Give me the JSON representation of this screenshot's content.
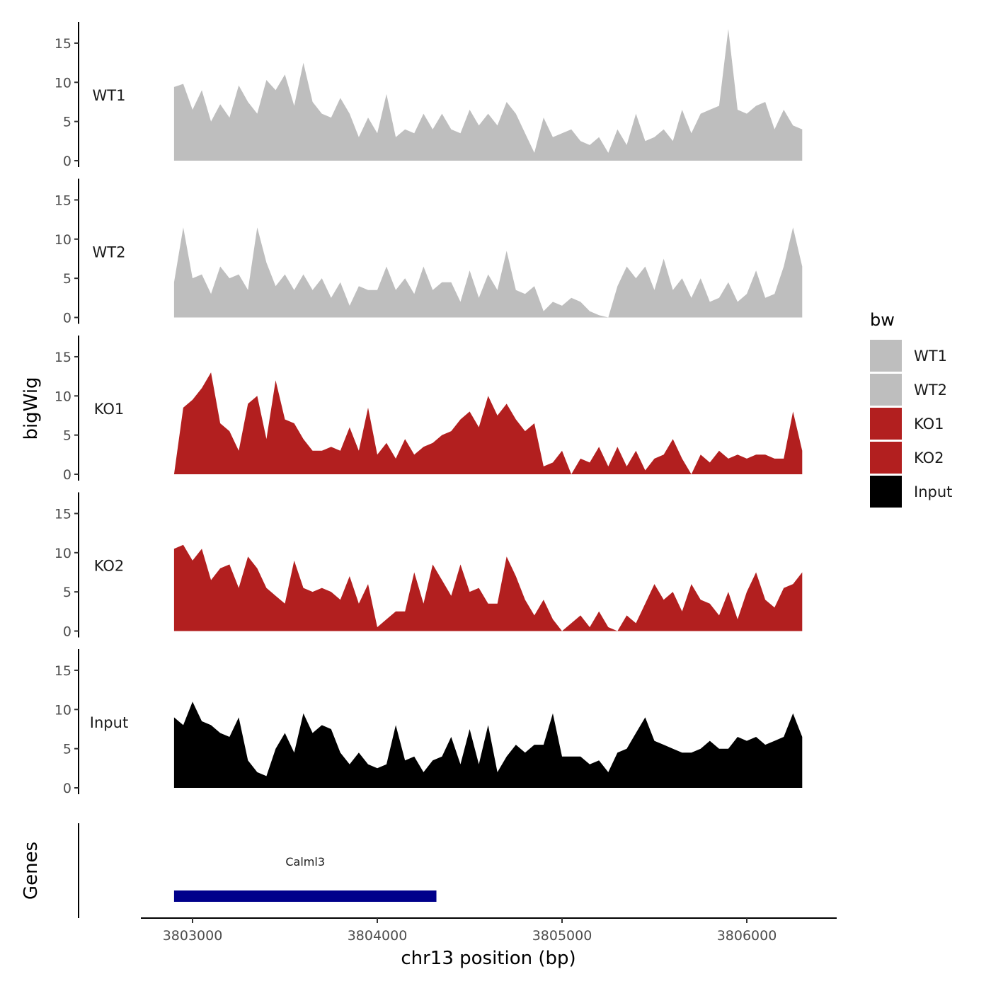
{
  "chart_data": {
    "type": "area",
    "title": "",
    "xlabel": "chr13 position (bp)",
    "ylabel": "bigWig",
    "genes_label": "Genes",
    "legend_title": "bw",
    "xlim": [
      3802700,
      3806500
    ],
    "ylim": [
      0,
      17
    ],
    "x_ticks": [
      3803000,
      3804000,
      3805000,
      3806000
    ],
    "x_tick_labels": [
      "3803000",
      "3804000",
      "3805000",
      "3806000"
    ],
    "y_ticks": [
      0,
      5,
      10,
      15
    ],
    "y_tick_labels": [
      "0",
      "5",
      "10",
      "15"
    ],
    "grid": false,
    "legend_position": "right",
    "positions": [
      3802900,
      3802950,
      3803000,
      3803050,
      3803100,
      3803150,
      3803200,
      3803250,
      3803300,
      3803350,
      3803400,
      3803450,
      3803500,
      3803550,
      3803600,
      3803650,
      3803700,
      3803750,
      3803800,
      3803850,
      3803900,
      3803950,
      3804000,
      3804050,
      3804100,
      3804150,
      3804200,
      3804250,
      3804300,
      3804350,
      3804400,
      3804450,
      3804500,
      3804550,
      3804600,
      3804650,
      3804700,
      3804750,
      3804800,
      3804850,
      3804900,
      3804950,
      3805000,
      3805050,
      3805100,
      3805150,
      3805200,
      3805250,
      3805300,
      3805350,
      3805400,
      3805450,
      3805500,
      3805550,
      3805600,
      3805650,
      3805700,
      3805750,
      3805800,
      3805850,
      3805900,
      3805950,
      3806000,
      3806050,
      3806100,
      3806150,
      3806200,
      3806250,
      3806300
    ],
    "series": [
      {
        "name": "WT1",
        "color": "#bebebe",
        "values": [
          9.4,
          9.8,
          6.5,
          9.0,
          5.0,
          7.2,
          5.5,
          9.6,
          7.5,
          6.0,
          10.3,
          9.0,
          11.0,
          7.0,
          12.5,
          7.5,
          6.0,
          5.5,
          8.0,
          6.0,
          3.0,
          5.5,
          3.5,
          8.5,
          3.0,
          4.0,
          3.5,
          6.0,
          4.0,
          6.0,
          4.0,
          3.5,
          6.5,
          4.5,
          6.0,
          4.5,
          7.5,
          6.0,
          3.5,
          1.0,
          5.5,
          3.0,
          3.5,
          4.0,
          2.5,
          2.0,
          3.0,
          1.0,
          4.0,
          2.0,
          6.0,
          2.5,
          3.0,
          4.0,
          2.5,
          6.5,
          3.5,
          6.0,
          6.5,
          7.0,
          16.8,
          6.5,
          6.0,
          7.0,
          7.5,
          4.0,
          6.5,
          4.5,
          4.0
        ]
      },
      {
        "name": "WT2",
        "color": "#bebebe",
        "values": [
          4.5,
          11.5,
          5.0,
          5.5,
          3.0,
          6.5,
          5.0,
          5.5,
          3.5,
          11.5,
          7.0,
          4.0,
          5.5,
          3.5,
          5.5,
          3.5,
          5.0,
          2.5,
          4.5,
          1.5,
          4.0,
          3.5,
          3.5,
          6.5,
          3.5,
          5.0,
          3.0,
          6.5,
          3.5,
          4.5,
          4.5,
          2.0,
          6.0,
          2.5,
          5.5,
          3.5,
          8.5,
          3.5,
          3.0,
          4.0,
          0.8,
          2.0,
          1.5,
          2.5,
          2.0,
          0.8,
          0.3,
          0.0,
          4.0,
          6.5,
          5.0,
          6.5,
          3.5,
          7.5,
          3.5,
          5.0,
          2.5,
          5.0,
          2.0,
          2.5,
          4.5,
          2.0,
          3.0,
          6.0,
          2.5,
          3.0,
          6.5,
          11.5,
          6.5
        ]
      },
      {
        "name": "KO1",
        "color": "#b21f1f",
        "values": [
          0.0,
          8.5,
          9.5,
          11.0,
          13.0,
          6.5,
          5.5,
          3.0,
          9.0,
          10.0,
          4.5,
          12.0,
          7.0,
          6.5,
          4.5,
          3.0,
          3.0,
          3.5,
          3.0,
          6.0,
          3.0,
          8.5,
          2.5,
          4.0,
          2.0,
          4.5,
          2.5,
          3.5,
          4.0,
          5.0,
          5.5,
          7.0,
          8.0,
          6.0,
          10.0,
          7.5,
          9.0,
          7.0,
          5.5,
          6.5,
          1.0,
          1.5,
          3.0,
          0.0,
          2.0,
          1.5,
          3.5,
          1.0,
          3.5,
          1.0,
          3.0,
          0.5,
          2.0,
          2.5,
          4.5,
          2.0,
          0.0,
          2.5,
          1.5,
          3.0,
          2.0,
          2.5,
          2.0,
          2.5,
          2.5,
          2.0,
          2.0,
          8.0,
          3.0
        ]
      },
      {
        "name": "KO2",
        "color": "#b21f1f",
        "values": [
          10.5,
          11.0,
          9.0,
          10.5,
          6.5,
          8.0,
          8.5,
          5.5,
          9.5,
          8.0,
          5.5,
          4.5,
          3.5,
          9.0,
          5.5,
          5.0,
          5.5,
          5.0,
          4.0,
          7.0,
          3.5,
          6.0,
          0.5,
          1.5,
          2.5,
          2.5,
          7.5,
          3.5,
          8.5,
          6.5,
          4.5,
          8.5,
          5.0,
          5.5,
          3.5,
          3.5,
          9.5,
          7.0,
          4.0,
          2.0,
          4.0,
          1.5,
          0.0,
          1.0,
          2.0,
          0.5,
          2.5,
          0.5,
          0.0,
          2.0,
          1.0,
          3.5,
          6.0,
          4.0,
          5.0,
          2.5,
          6.0,
          4.0,
          3.5,
          2.0,
          5.0,
          1.5,
          5.0,
          7.5,
          4.0,
          3.0,
          5.5,
          6.0,
          7.5
        ]
      },
      {
        "name": "Input",
        "color": "#000000",
        "values": [
          9.0,
          8.0,
          11.0,
          8.5,
          8.0,
          7.0,
          6.5,
          9.0,
          3.5,
          2.0,
          1.5,
          5.0,
          7.0,
          4.5,
          9.5,
          7.0,
          8.0,
          7.5,
          4.5,
          3.0,
          4.5,
          3.0,
          2.5,
          3.0,
          8.0,
          3.5,
          4.0,
          2.0,
          3.5,
          4.0,
          6.5,
          3.0,
          7.5,
          3.0,
          8.0,
          2.0,
          4.0,
          5.5,
          4.5,
          5.5,
          5.5,
          9.5,
          4.0,
          4.0,
          4.0,
          3.0,
          3.5,
          2.0,
          4.5,
          5.0,
          7.0,
          9.0,
          6.0,
          5.5,
          5.0,
          4.5,
          4.5,
          5.0,
          6.0,
          5.0,
          5.0,
          6.5,
          6.0,
          6.5,
          5.5,
          6.0,
          6.5,
          9.5,
          6.5
        ]
      }
    ],
    "genes": [
      {
        "name": "Calml3",
        "start": 3802900,
        "end": 3804320,
        "color": "#00008b"
      }
    ]
  }
}
